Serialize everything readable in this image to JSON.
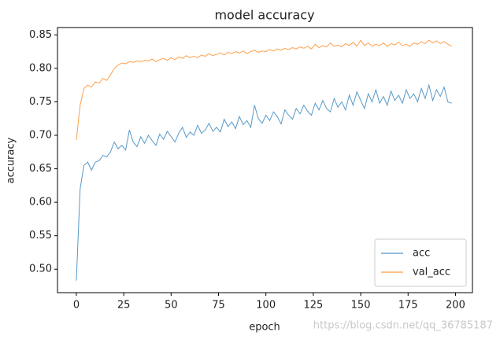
{
  "chart_data": {
    "type": "line",
    "title": "model accuracy",
    "x_label": "epoch",
    "y_label": "accuracy",
    "x": [
      0,
      2,
      4,
      6,
      8,
      10,
      12,
      14,
      16,
      18,
      20,
      22,
      24,
      26,
      28,
      30,
      32,
      34,
      36,
      38,
      40,
      42,
      44,
      46,
      48,
      50,
      52,
      54,
      56,
      58,
      60,
      62,
      64,
      66,
      68,
      70,
      72,
      74,
      76,
      78,
      80,
      82,
      84,
      86,
      88,
      90,
      92,
      94,
      96,
      98,
      100,
      102,
      104,
      106,
      108,
      110,
      112,
      114,
      116,
      118,
      120,
      122,
      124,
      126,
      128,
      130,
      132,
      134,
      136,
      138,
      140,
      142,
      144,
      146,
      148,
      150,
      152,
      154,
      156,
      158,
      160,
      162,
      164,
      166,
      168,
      170,
      172,
      174,
      176,
      178,
      180,
      182,
      184,
      186,
      188,
      190,
      192,
      194,
      196,
      198
    ],
    "series": [
      {
        "name": "acc",
        "color": "#1f77b4",
        "values": [
          0.483,
          0.62,
          0.655,
          0.66,
          0.648,
          0.66,
          0.662,
          0.67,
          0.668,
          0.675,
          0.69,
          0.68,
          0.685,
          0.678,
          0.708,
          0.69,
          0.683,
          0.698,
          0.688,
          0.7,
          0.692,
          0.685,
          0.702,
          0.694,
          0.706,
          0.698,
          0.69,
          0.703,
          0.712,
          0.697,
          0.705,
          0.7,
          0.715,
          0.703,
          0.708,
          0.718,
          0.706,
          0.712,
          0.705,
          0.724,
          0.713,
          0.72,
          0.71,
          0.728,
          0.716,
          0.722,
          0.712,
          0.745,
          0.725,
          0.718,
          0.73,
          0.722,
          0.735,
          0.728,
          0.717,
          0.738,
          0.73,
          0.724,
          0.74,
          0.732,
          0.745,
          0.736,
          0.73,
          0.748,
          0.738,
          0.752,
          0.74,
          0.735,
          0.755,
          0.742,
          0.75,
          0.738,
          0.76,
          0.745,
          0.765,
          0.752,
          0.74,
          0.762,
          0.75,
          0.768,
          0.748,
          0.758,
          0.745,
          0.766,
          0.752,
          0.76,
          0.748,
          0.768,
          0.755,
          0.762,
          0.75,
          0.77,
          0.755,
          0.775,
          0.752,
          0.768,
          0.758,
          0.772,
          0.75,
          0.748
        ]
      },
      {
        "name": "val_acc",
        "color": "#ff7f0e",
        "values": [
          0.693,
          0.745,
          0.77,
          0.775,
          0.772,
          0.78,
          0.778,
          0.785,
          0.782,
          0.79,
          0.8,
          0.805,
          0.808,
          0.807,
          0.81,
          0.809,
          0.811,
          0.81,
          0.812,
          0.811,
          0.814,
          0.81,
          0.813,
          0.815,
          0.812,
          0.816,
          0.813,
          0.817,
          0.815,
          0.819,
          0.816,
          0.818,
          0.816,
          0.82,
          0.818,
          0.822,
          0.819,
          0.821,
          0.823,
          0.82,
          0.824,
          0.822,
          0.825,
          0.823,
          0.826,
          0.822,
          0.825,
          0.827,
          0.824,
          0.826,
          0.825,
          0.828,
          0.826,
          0.829,
          0.827,
          0.83,
          0.828,
          0.831,
          0.829,
          0.832,
          0.83,
          0.833,
          0.829,
          0.836,
          0.831,
          0.834,
          0.832,
          0.838,
          0.833,
          0.835,
          0.832,
          0.837,
          0.834,
          0.839,
          0.833,
          0.842,
          0.834,
          0.838,
          0.833,
          0.836,
          0.834,
          0.838,
          0.833,
          0.837,
          0.835,
          0.839,
          0.834,
          0.836,
          0.833,
          0.838,
          0.836,
          0.84,
          0.837,
          0.842,
          0.838,
          0.841,
          0.837,
          0.84,
          0.836,
          0.833
        ]
      }
    ],
    "xlim": [
      -9.95,
      208.95
    ],
    "xticks": [
      0,
      25,
      50,
      75,
      100,
      125,
      150,
      175,
      200
    ],
    "ylim": [
      0.465,
      0.861
    ],
    "yticks": [
      {
        "value": 0.5,
        "label": "0.50"
      },
      0.55,
      {
        "value": 0.6,
        "label": "0.60"
      },
      0.65,
      {
        "value": 0.7,
        "label": "0.70"
      },
      0.75,
      {
        "value": 0.8,
        "label": "0.80"
      },
      0.85
    ],
    "legend": "lower right",
    "grid": false
  },
  "watermark": "https://blog.csdn.net/qq_36785187"
}
